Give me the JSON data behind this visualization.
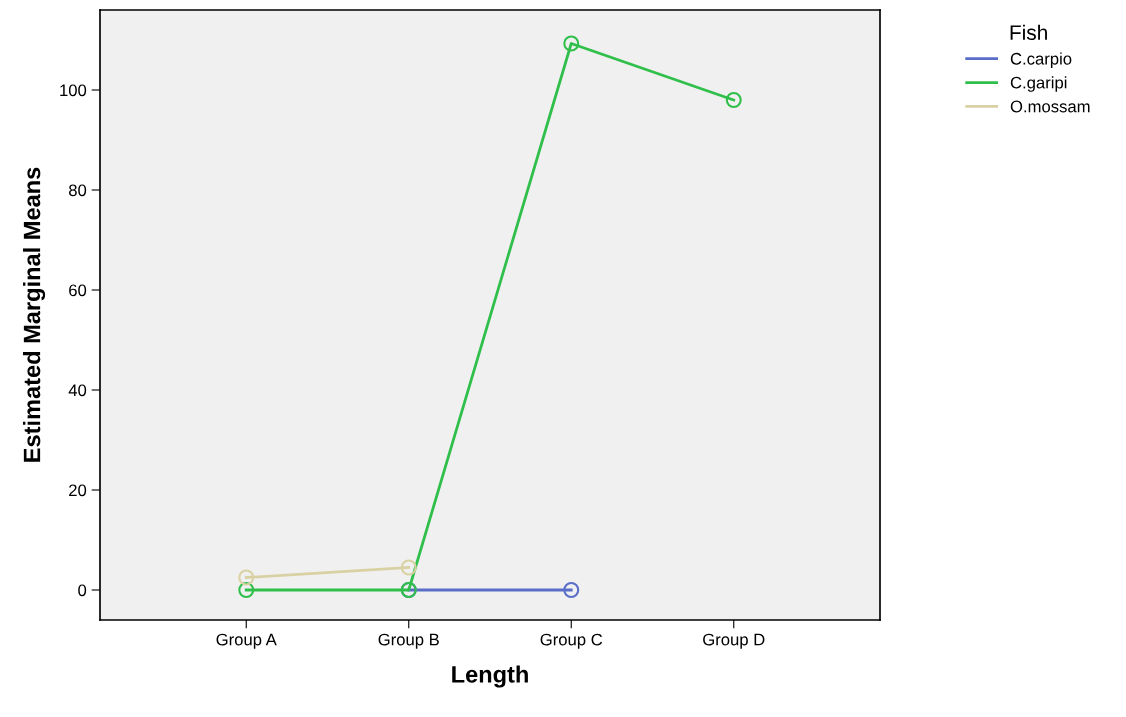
{
  "chart_data": {
    "type": "line",
    "xlabel": "Length",
    "ylabel": "Estimated Marginal Means",
    "legend_title": "Fish",
    "categories": [
      "Group A",
      "Group B",
      "Group C",
      "Group D"
    ],
    "series": [
      {
        "name": "C.carpio",
        "color": "#5a6ec8",
        "values": [
          null,
          0,
          0,
          null
        ]
      },
      {
        "name": "C.garipi",
        "color": "#2fbf4a",
        "values": [
          0,
          0,
          109.3,
          98
        ]
      },
      {
        "name": "O.mossam",
        "color": "#d9d1a3",
        "values": [
          2.5,
          4.5,
          null,
          null
        ]
      }
    ],
    "ylim": [
      -6,
      116
    ],
    "yticks": [
      0,
      20,
      40,
      60,
      80,
      100
    ],
    "grid": false,
    "legend": "top right",
    "marker": "circle",
    "line_style": "solid"
  }
}
